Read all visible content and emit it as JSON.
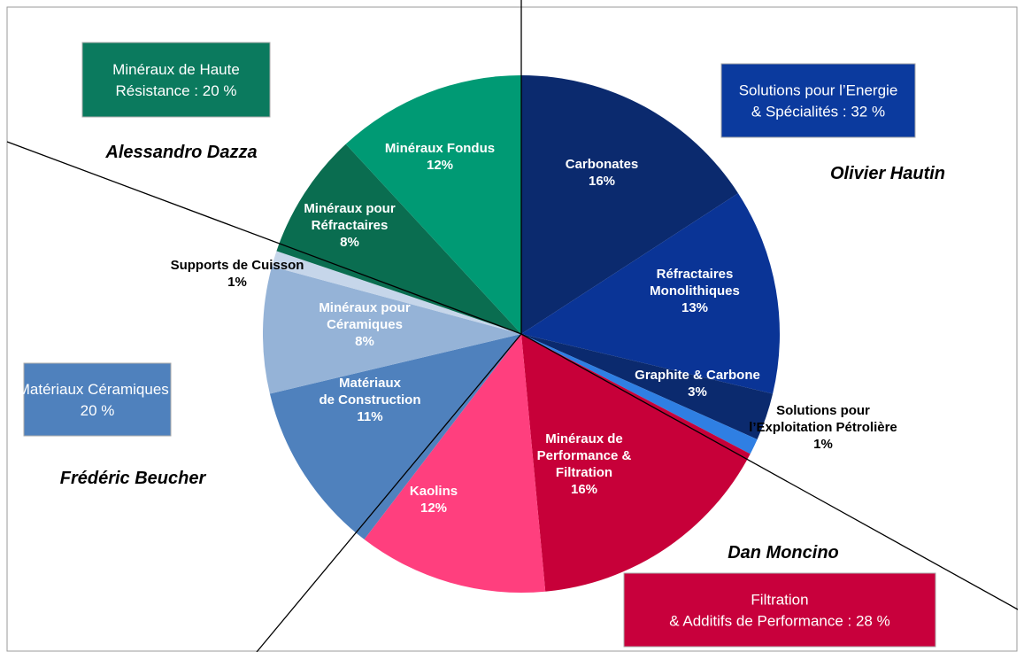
{
  "chart_data": {
    "type": "pie",
    "categories": [
      "Carbonates",
      "Réfractaires\nMonolithiques",
      "Graphite & Carbone",
      "Solutions pour\nl’Exploitation Pétrolière",
      "Minéraux de\nPerformance &\nFiltration",
      "Kaolins",
      "Matériaux\nde Construction",
      "Minéraux pour\nCéramiques",
      "Supports de Cuisson",
      "Minéraux pour\nRéfractaires",
      "Minéraux Fondus"
    ],
    "values": [
      16,
      13,
      3,
      1,
      16,
      12,
      11,
      8,
      1,
      8,
      12
    ],
    "value_labels": [
      "16%",
      "13%",
      "3%",
      "1%",
      "16%",
      "12%",
      "11%",
      "8%",
      "1%",
      "8%",
      "12%"
    ],
    "colors": [
      "#0b2a6e",
      "#0a3496",
      "#0b2a6e",
      "#2f7fe3",
      "#c70039",
      "#ff3f7e",
      "#4f81bd",
      "#95b3d7",
      "#c6d6ea",
      "#0a6d50",
      "#009a74"
    ],
    "groups": [
      {
        "label": "Minéraux de Haute\nRésistance : 20 %",
        "manager": "Alessandro Dazza",
        "color": "#0b7a5e"
      },
      {
        "label": "Solutions pour l’Energie\n& Spécialités : 32 %",
        "manager": "Olivier Hautin",
        "color": "#0b3a9e"
      },
      {
        "label": "Matériaux Céramiques :\n20 %",
        "manager": "Frédéric Beucher",
        "color": "#4f81bd"
      },
      {
        "label": "Filtration\n& Additifs de Performance : 28 %",
        "manager": "Dan Moncino",
        "color": "#c8003c"
      }
    ]
  }
}
